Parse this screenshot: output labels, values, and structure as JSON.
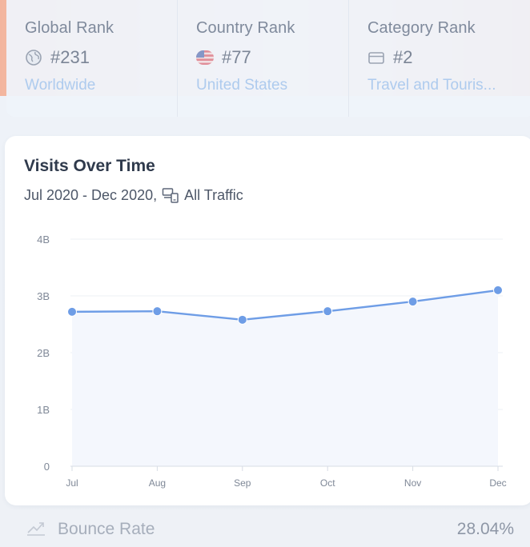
{
  "ranks": [
    {
      "label": "Global Rank",
      "icon": "globe-icon",
      "value": "#231",
      "link": "Worldwide"
    },
    {
      "label": "Country Rank",
      "icon": "us-flag-icon",
      "value": "#77",
      "link": "United States"
    },
    {
      "label": "Category Rank",
      "icon": "category-icon",
      "value": "#2",
      "link": "Travel and Touris..."
    }
  ],
  "visits": {
    "title": "Visits Over Time",
    "date_range": "Jul 2020 - Dec 2020,",
    "traffic_icon": "devices-icon",
    "traffic": "All Traffic"
  },
  "chart_data": {
    "type": "line",
    "categories": [
      "Jul",
      "Aug",
      "Sep",
      "Oct",
      "Nov",
      "Dec"
    ],
    "values": [
      2.72,
      2.73,
      2.58,
      2.73,
      2.9,
      3.1
    ],
    "y_ticks": [
      0,
      1,
      2,
      3,
      4
    ],
    "y_tick_labels": [
      "0",
      "1B",
      "2B",
      "3B",
      "4B"
    ],
    "ylim": [
      0,
      4
    ],
    "grid": true,
    "line_color": "#6e9de6",
    "fill_color": "#f4f7fd"
  },
  "bounce": {
    "icon": "trend-icon",
    "label": "Bounce Rate",
    "value": "28.04%"
  },
  "colors": {
    "accent": "#f3b59e",
    "link": "#aecbee"
  }
}
